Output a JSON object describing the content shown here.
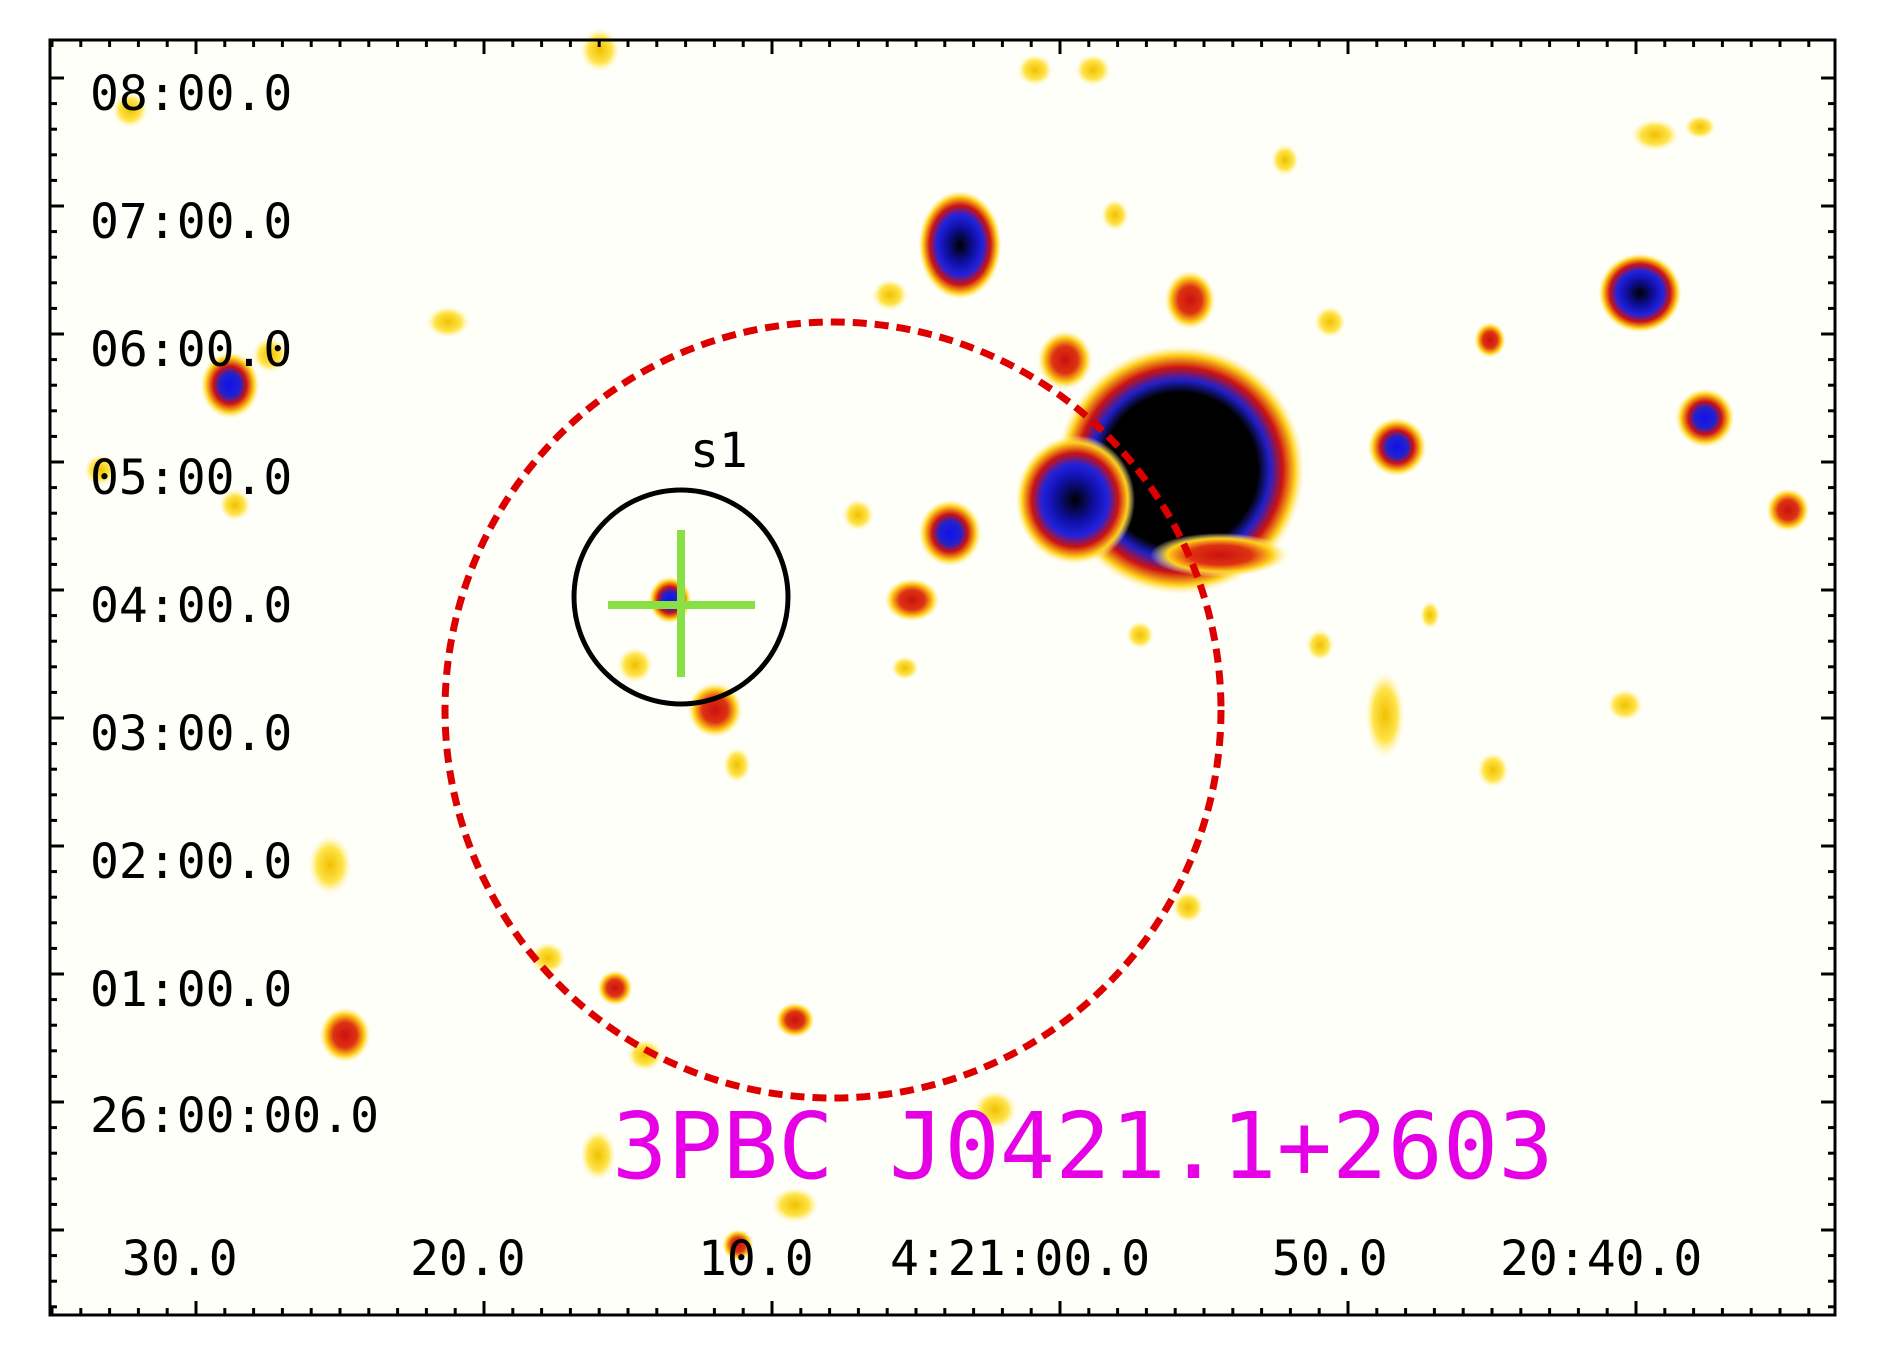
{
  "image": {
    "title": "3PBC J0421.1+2603",
    "source_label": "s1"
  },
  "axes": {
    "dec_ticks": [
      "08:00.0",
      "07:00.0",
      "06:00.0",
      "05:00.0",
      "04:00.0",
      "03:00.0",
      "02:00.0",
      "01:00.0",
      "26:00:00.0"
    ],
    "ra_ticks": [
      "30.0",
      "20.0",
      "10.0",
      "4:21:00.0",
      "50.0",
      "20:40.0"
    ]
  },
  "colors": {
    "title": "#e600e6",
    "error_circle": "#dd0000",
    "source_circle": "#000000",
    "crosshair": "#88e044",
    "frame": "#000000"
  }
}
